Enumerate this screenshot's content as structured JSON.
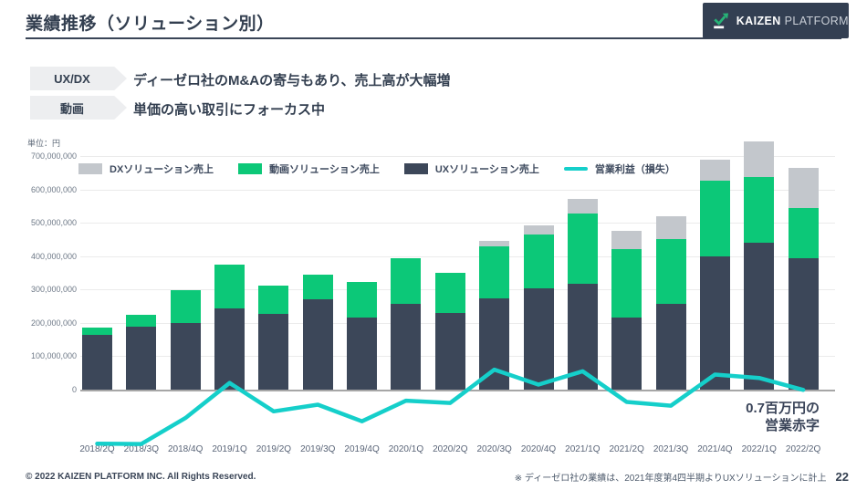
{
  "header": {
    "title": "業績推移（ソリューション別）",
    "logo": {
      "brand_bold": "KAIZEN",
      "brand_light": "PLATFORM"
    }
  },
  "callouts": [
    {
      "badge": "UX/DX",
      "text": "ディーゼロ社のM&Aの寄与もあり、売上高が大幅増"
    },
    {
      "badge": "動画",
      "text": "単価の高い取引にフォーカス中"
    }
  ],
  "chart_data": {
    "type": "bar+line",
    "stacked": true,
    "unit_label": "単位：円",
    "categories": [
      "2018/2Q",
      "2018/3Q",
      "2018/4Q",
      "2019/1Q",
      "2019/2Q",
      "2019/3Q",
      "2019/4Q",
      "2020/1Q",
      "2020/2Q",
      "2020/3Q",
      "2020/4Q",
      "2021/1Q",
      "2021/2Q",
      "2021/3Q",
      "2021/4Q",
      "2022/1Q",
      "2022/2Q"
    ],
    "series": [
      {
        "name": "UXソリューション売上",
        "type": "bar",
        "color": "#3c4759",
        "values": [
          163000000,
          190000000,
          200000000,
          244000000,
          227000000,
          271000000,
          215000000,
          258000000,
          229000000,
          274000000,
          303000000,
          318000000,
          215000000,
          258000000,
          400000000,
          440000000,
          395000000
        ]
      },
      {
        "name": "動画ソリューション売上",
        "type": "bar",
        "color": "#0cc878",
        "values": [
          22000000,
          35000000,
          98000000,
          130000000,
          85000000,
          74000000,
          107000000,
          137000000,
          121000000,
          155000000,
          163000000,
          210000000,
          205000000,
          194000000,
          225000000,
          198000000,
          150000000
        ]
      },
      {
        "name": "DXソリューション売上",
        "type": "bar",
        "color": "#c3c7cc",
        "values": [
          0,
          0,
          0,
          0,
          0,
          0,
          0,
          0,
          0,
          16000000,
          26000000,
          43000000,
          57000000,
          68000000,
          65000000,
          107000000,
          120000000
        ]
      },
      {
        "name": "営業利益（損失）",
        "type": "line",
        "color": "#15cfca",
        "values": [
          -162000000,
          -163000000,
          -85000000,
          20000000,
          -65000000,
          -45000000,
          -95000000,
          -33000000,
          -40000000,
          60000000,
          15000000,
          55000000,
          -37000000,
          -48000000,
          45000000,
          35000000,
          -700000
        ]
      }
    ],
    "legend": [
      {
        "label": "DXソリューション売上",
        "color": "#c3c7cc",
        "shape": "rect"
      },
      {
        "label": "動画ソリューション売上",
        "color": "#0cc878",
        "shape": "rect"
      },
      {
        "label": "UXソリューション売上",
        "color": "#3c4759",
        "shape": "rect"
      },
      {
        "label": "営業利益（損失）",
        "color": "#15cfca",
        "shape": "line"
      }
    ],
    "yticks": [
      "700,000,000",
      "600,000,000",
      "500,000,000",
      "400,000,000",
      "300,000,000",
      "200,000,000",
      "100,000,000",
      "0"
    ],
    "yaxis": {
      "labeled_max": 700000000,
      "gridline_step": 100000000,
      "ylim": [
        -170000000,
        750000000
      ],
      "grid": true
    },
    "legend_position": "top-left-inside",
    "annotation": {
      "line1": "0.7百万円の",
      "line2": "営業赤字"
    }
  },
  "footer": {
    "copyright": "© 2022 KAIZEN PLATFORM INC. All Rights Reserved.",
    "footnote": "※ ディーゼロ社の業績は、2021年度第4四半期よりUXソリューションに計上",
    "page_number": "22"
  }
}
